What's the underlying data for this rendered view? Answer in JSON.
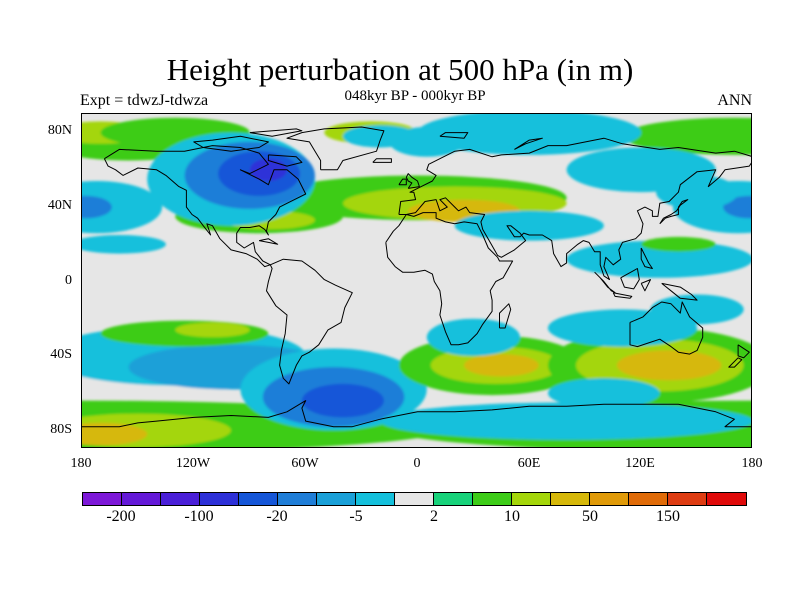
{
  "title": "Height perturbation at 500 hPa (in m)",
  "left_label": "Expt = tdwzJ-tdwza",
  "center_label": "048kyr BP - 000kyr BP",
  "right_label": "ANN",
  "map": {
    "type": "filled-contour-map",
    "projection": "cylindrical-equidistant",
    "lon_range": [
      -180,
      180
    ],
    "lat_range": [
      -90,
      90
    ],
    "lat_tick_labels": [
      "80N",
      "40N",
      "0",
      "40S",
      "80S"
    ],
    "lon_tick_labels": [
      "180",
      "120W",
      "60W",
      "0",
      "60E",
      "120E",
      "180"
    ],
    "background_color": "#e6e6e6",
    "coastline_color": "#000000"
  },
  "colorbar": {
    "colors": [
      "#7d18d8",
      "#6419d8",
      "#4a1fd8",
      "#2d30d8",
      "#1556d8",
      "#1f7ed8",
      "#1aa0d8",
      "#14c0dc",
      "#e6e6e6",
      "#17d27a",
      "#3dcc18",
      "#a4d60a",
      "#d6b80a",
      "#e09a08",
      "#e06b08",
      "#de3c12",
      "#e00a0a"
    ],
    "labels": [
      "-200",
      "-100",
      "-20",
      "-5",
      "2",
      "10",
      "50",
      "150"
    ]
  }
}
